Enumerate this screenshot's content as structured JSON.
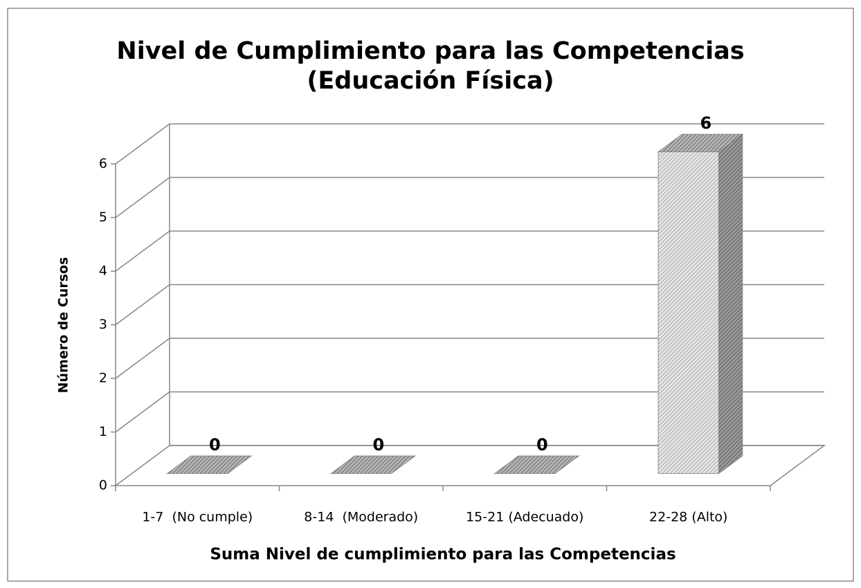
{
  "chart_data": {
    "type": "bar3d",
    "title": [
      "Nivel de Cumplimiento para las Competencias",
      "(Educación Física)"
    ],
    "x_label": "Suma Nivel de cumplimiento para las Competencias",
    "y_label": "Número de Cursos",
    "categories": [
      "1-7  (No cumple)",
      "8-14  (Moderado)",
      "15-21 (Adecuado)",
      "22-28 (Alto)"
    ],
    "values": [
      0,
      0,
      0,
      6
    ],
    "color": "#7f7f7f",
    "ylim": [
      0,
      6
    ],
    "yticks": [
      0,
      1,
      2,
      3,
      4,
      5,
      6
    ],
    "grid": true
  }
}
